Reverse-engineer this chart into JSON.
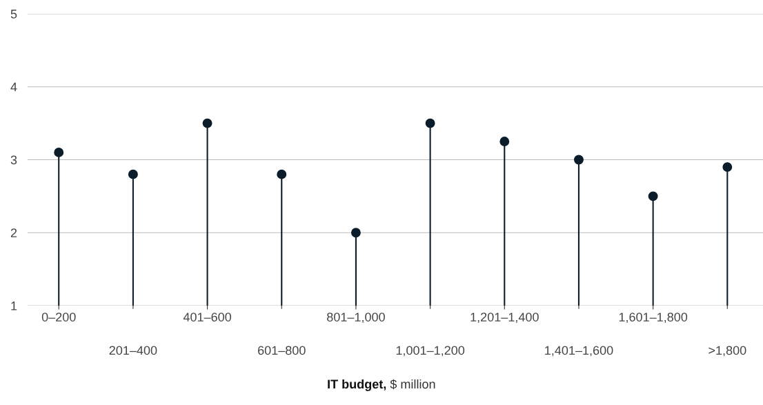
{
  "chart_data": {
    "type": "lollipop",
    "xlabel": "IT budget, $ million",
    "categories": [
      "0–200",
      "201–400",
      "401–600",
      "601–800",
      "801–1,000",
      "1,001–1,200",
      "1,201–1,400",
      "1,401–1,600",
      "1,601–1,800",
      ">1,800"
    ],
    "values": [
      3.1,
      2.8,
      3.5,
      2.8,
      2.0,
      3.5,
      3.25,
      3.0,
      2.5,
      2.9
    ],
    "color": "#0b1d2b",
    "ylim": [
      1,
      5
    ],
    "yticks": [
      1,
      2,
      3,
      4,
      5
    ],
    "grid": "y",
    "marker": "circle"
  }
}
